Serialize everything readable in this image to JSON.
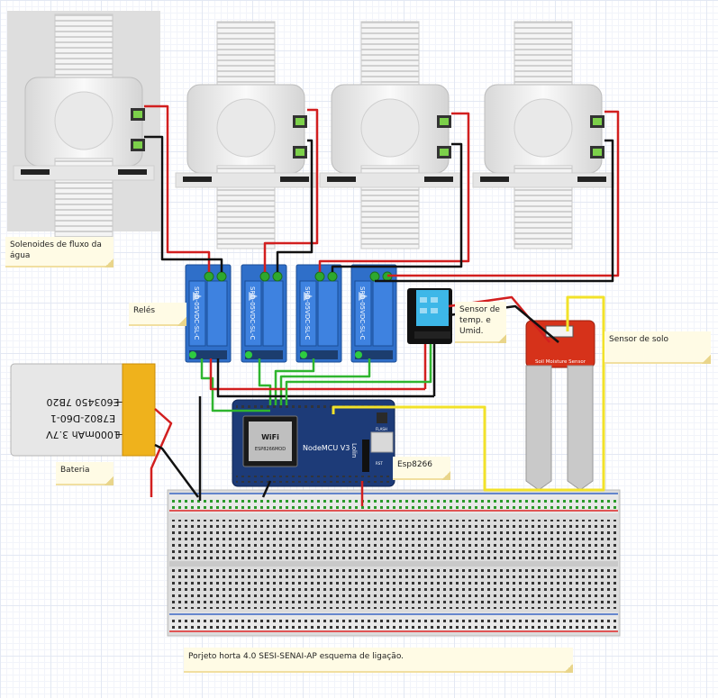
{
  "labels": {
    "solenoids": "Solenoides de fluxo da água",
    "relays": "Relés",
    "battery": "Bateria",
    "dht": "Sensor de temp. e Umid.",
    "soil": "Sensor de solo",
    "esp": "Esp8266",
    "project": "Porjeto horta 4.0 SESI-SENAI-AP esquema de ligação."
  },
  "battery": {
    "line1": "1000mAh 3.7V",
    "line2": "E7802-D60-1",
    "line3": "E603450 7B20",
    "plus_mark": "+",
    "minus_mark": "−"
  },
  "nodemcu": {
    "title": "NodeMCU V3",
    "brand": "Lolin",
    "wifi": "WiFi",
    "chip": "ESP8266MOD",
    "flash_label": "FLASH",
    "rst_label": "RST"
  },
  "relay_module": {
    "model": "SRD-05VDC-SL-C",
    "rating": "10A 250VAC"
  },
  "soil_sensor": {
    "text": "Soil Moisture Sensor"
  },
  "colors": {
    "wire_red": "#d21f1f",
    "wire_black": "#111111",
    "wire_green": "#2fb52f",
    "wire_yellow": "#f2e22a",
    "relay_blue": "#2f6fc9",
    "board_blue": "#1d3b78",
    "battery_gold": "#efb21c",
    "soil_red": "#d6321a",
    "note_bg": "#fffbe5"
  }
}
